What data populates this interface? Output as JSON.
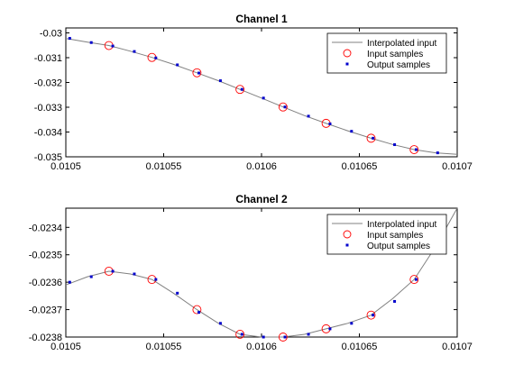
{
  "chart_data": [
    {
      "type": "line",
      "title": "Channel 1",
      "xlabel": "",
      "ylabel": "",
      "xlim": [
        0.0105,
        0.0107
      ],
      "ylim": [
        -0.035,
        -0.0298
      ],
      "xticks": [
        0.0105,
        0.01055,
        0.0106,
        0.01065,
        0.0107
      ],
      "xtick_labels": [
        "0.0105",
        "0.01055",
        "0.0106",
        "0.01065",
        "0.0107"
      ],
      "yticks": [
        -0.035,
        -0.034,
        -0.033,
        -0.032,
        -0.031,
        -0.03
      ],
      "ytick_labels": [
        "-0.035",
        "-0.034",
        "-0.033",
        "-0.032",
        "-0.031",
        "-0.03"
      ],
      "grid": false,
      "legend_position": "top-right",
      "legend": [
        "Interpolated input",
        "Input samples",
        "Output samples"
      ],
      "series": [
        {
          "name": "Interpolated input",
          "style": "line",
          "color": "#808080",
          "x": [
            0.0105,
            0.010502,
            0.010511,
            0.010522,
            0.010533,
            0.010544,
            0.010555,
            0.010567,
            0.010578,
            0.010589,
            0.0106,
            0.010611,
            0.010622,
            0.010633,
            0.010644,
            0.010656,
            0.010667,
            0.010678,
            0.010689,
            0.0107
          ],
          "y": [
            -0.03023,
            -0.03025,
            -0.03037,
            -0.03051,
            -0.03074,
            -0.03099,
            -0.03127,
            -0.03161,
            -0.03193,
            -0.03228,
            -0.03263,
            -0.03299,
            -0.03334,
            -0.03365,
            -0.03395,
            -0.03425,
            -0.0345,
            -0.03471,
            -0.03484,
            -0.0349
          ]
        },
        {
          "name": "Input samples",
          "style": "circle",
          "color": "#ff0000",
          "x": [
            0.010522,
            0.010544,
            0.010567,
            0.010589,
            0.010611,
            0.010633,
            0.010656,
            0.010678
          ],
          "y": [
            -0.03051,
            -0.03099,
            -0.03161,
            -0.03228,
            -0.03299,
            -0.03365,
            -0.03425,
            -0.03471
          ]
        },
        {
          "name": "Output samples",
          "style": "square",
          "color": "#0000cc",
          "x": [
            0.010502,
            0.010513,
            0.010524,
            0.010535,
            0.010546,
            0.010557,
            0.010568,
            0.010579,
            0.01059,
            0.010601,
            0.010612,
            0.010624,
            0.010635,
            0.010646,
            0.010657,
            0.010668,
            0.010679,
            0.01069
          ],
          "y": [
            -0.03022,
            -0.03039,
            -0.03053,
            -0.03075,
            -0.03101,
            -0.03129,
            -0.03162,
            -0.03193,
            -0.03228,
            -0.03263,
            -0.03299,
            -0.03336,
            -0.03367,
            -0.03397,
            -0.03425,
            -0.03451,
            -0.03471,
            -0.03484
          ]
        }
      ]
    },
    {
      "type": "line",
      "title": "Channel 2",
      "xlabel": "",
      "ylabel": "",
      "xlim": [
        0.0105,
        0.0107
      ],
      "ylim": [
        -0.0238,
        -0.02333
      ],
      "xticks": [
        0.0105,
        0.01055,
        0.0106,
        0.01065,
        0.0107
      ],
      "xtick_labels": [
        "0.0105",
        "0.01055",
        "0.0106",
        "0.01065",
        "0.0107"
      ],
      "yticks": [
        -0.0238,
        -0.0237,
        -0.0236,
        -0.0235,
        -0.0234
      ],
      "ytick_labels": [
        "-0.0238",
        "-0.0237",
        "-0.0236",
        "-0.0235",
        "-0.0234"
      ],
      "grid": false,
      "legend_position": "top-right",
      "legend": [
        "Interpolated input",
        "Input samples",
        "Output samples"
      ],
      "series": [
        {
          "name": "Interpolated input",
          "style": "line",
          "color": "#808080",
          "x": [
            0.0105,
            0.010511,
            0.010522,
            0.010533,
            0.010544,
            0.010555,
            0.010567,
            0.010578,
            0.010589,
            0.0106,
            0.010611,
            0.010622,
            0.010633,
            0.010644,
            0.010656,
            0.010667,
            0.010678,
            0.010689,
            0.0107
          ],
          "y": [
            -0.02361,
            -0.02358,
            -0.02356,
            -0.02357,
            -0.02359,
            -0.02364,
            -0.0237,
            -0.02375,
            -0.02379,
            -0.0238,
            -0.0238,
            -0.02379,
            -0.02377,
            -0.02375,
            -0.02372,
            -0.02366,
            -0.02359,
            -0.02347,
            -0.02333
          ]
        },
        {
          "name": "Input samples",
          "style": "circle",
          "color": "#ff0000",
          "x": [
            0.010522,
            0.010544,
            0.010567,
            0.010589,
            0.010611,
            0.010633,
            0.010656,
            0.010678
          ],
          "y": [
            -0.02356,
            -0.02359,
            -0.0237,
            -0.02379,
            -0.0238,
            -0.02377,
            -0.02372,
            -0.02359
          ]
        },
        {
          "name": "Output samples",
          "style": "square",
          "color": "#0000cc",
          "x": [
            0.010502,
            0.010513,
            0.010524,
            0.010535,
            0.010546,
            0.010557,
            0.010568,
            0.010579,
            0.01059,
            0.010601,
            0.010612,
            0.010624,
            0.010635,
            0.010646,
            0.010657,
            0.010668,
            0.010679
          ],
          "y": [
            -0.0236,
            -0.02358,
            -0.02356,
            -0.02357,
            -0.02359,
            -0.02364,
            -0.02371,
            -0.02375,
            -0.02379,
            -0.0238,
            -0.0238,
            -0.02379,
            -0.02377,
            -0.02375,
            -0.02372,
            -0.02367,
            -0.02359
          ]
        }
      ]
    }
  ]
}
